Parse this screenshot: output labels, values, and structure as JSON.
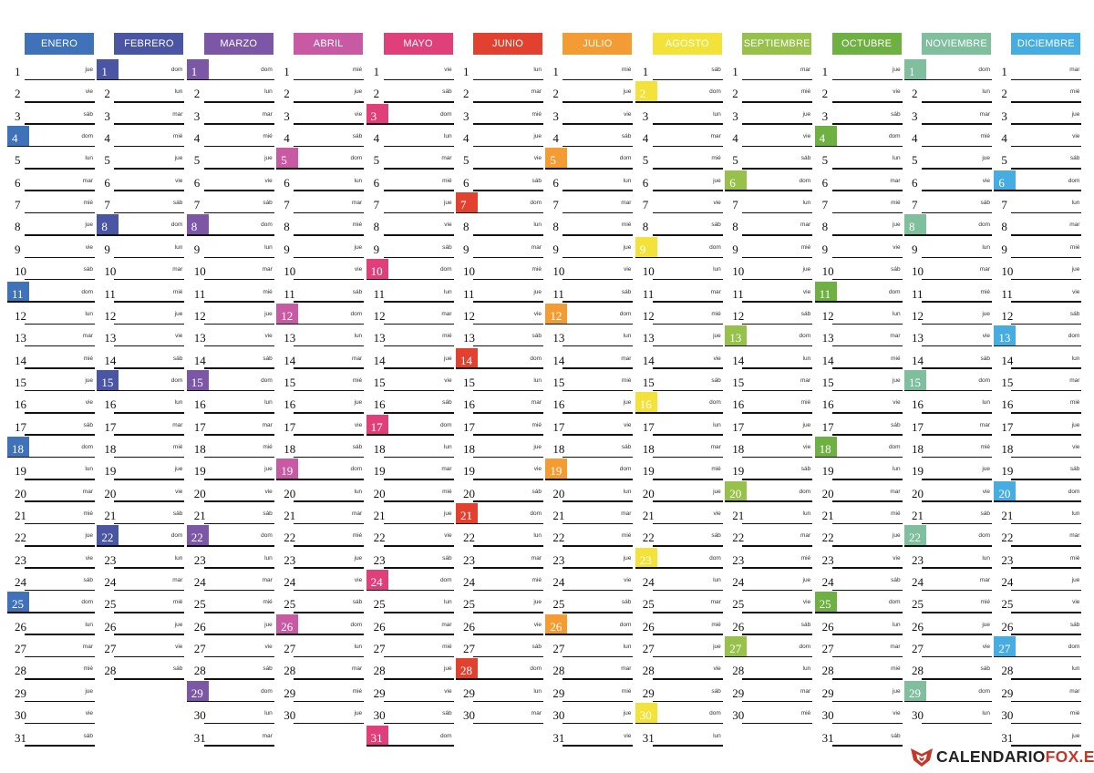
{
  "calendar": {
    "weekday_abbr": [
      "lun",
      "mar",
      "mié",
      "jue",
      "vie",
      "sáb",
      "dom"
    ],
    "months": [
      {
        "name": "ENERO",
        "color": "#3f72b8",
        "days": 31,
        "start_weekday": 3
      },
      {
        "name": "FEBRERO",
        "color": "#4a55a3",
        "days": 28,
        "start_weekday": 6
      },
      {
        "name": "MARZO",
        "color": "#7b57a6",
        "days": 31,
        "start_weekday": 6
      },
      {
        "name": "ABRIL",
        "color": "#c75aa2",
        "days": 30,
        "start_weekday": 2
      },
      {
        "name": "MAYO",
        "color": "#e0407a",
        "days": 31,
        "start_weekday": 4
      },
      {
        "name": "JUNIO",
        "color": "#e2412f",
        "days": 30,
        "start_weekday": 0
      },
      {
        "name": "JULIO",
        "color": "#f39c33",
        "days": 31,
        "start_weekday": 2
      },
      {
        "name": "AGOSTO",
        "color": "#f3e23a",
        "days": 31,
        "start_weekday": 5
      },
      {
        "name": "SEPTIEMBRE",
        "color": "#97c14a",
        "days": 30,
        "start_weekday": 1
      },
      {
        "name": "OCTUBRE",
        "color": "#6fb043",
        "days": 31,
        "start_weekday": 3
      },
      {
        "name": "NOVIEMBRE",
        "color": "#7fbf9e",
        "days": 30,
        "start_weekday": 6
      },
      {
        "name": "DICIEMBRE",
        "color": "#47ace0",
        "days": 31,
        "start_weekday": 1
      }
    ]
  },
  "logo": {
    "text_main": "CALENDARIO",
    "text_accent": "FOX.ES",
    "accent_color": "#c0392b"
  }
}
